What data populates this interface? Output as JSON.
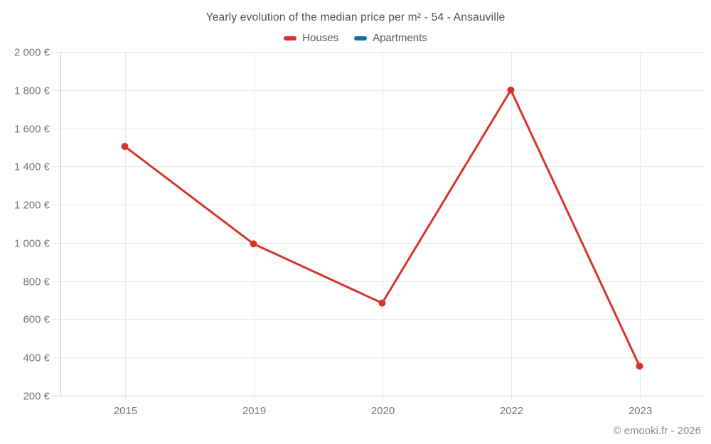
{
  "header": {
    "title": "Yearly evolution of the median price per m² - 54 - Ansauville"
  },
  "legend": {
    "items": [
      {
        "id": "houses",
        "label": "Houses",
        "color": "#d7342e"
      },
      {
        "id": "apartments",
        "label": "Apartments",
        "color": "#15719f"
      }
    ]
  },
  "footer": {
    "credit": "© emooki.fr - 2026"
  },
  "chart_data": {
    "type": "line",
    "title": "Yearly evolution of the median price per m² - 54 - Ansauville",
    "categories": [
      "2015",
      "2019",
      "2020",
      "2022",
      "2023"
    ],
    "series": [
      {
        "name": "Houses",
        "color": "#d7342e",
        "values": [
          1505,
          995,
          685,
          1800,
          355
        ]
      },
      {
        "name": "Apartments",
        "color": "#15719f",
        "values": [
          null,
          null,
          null,
          null,
          null
        ]
      }
    ],
    "xlabel": "",
    "ylabel": "",
    "ylim": [
      200,
      2000
    ],
    "ytick_step": 200,
    "ytick_labels": [
      "2 000 €",
      "1 800 €",
      "1 600 €",
      "1 400 €",
      "1 200 €",
      "1 000 €",
      "800 €",
      "600 €",
      "400 €",
      "200 €"
    ],
    "currency": "€",
    "grid": true,
    "legend_position": "top",
    "colors": {
      "grid_line": "#e8e8e8",
      "axis_line": "#cccccc",
      "tick_text": "#757575"
    }
  }
}
